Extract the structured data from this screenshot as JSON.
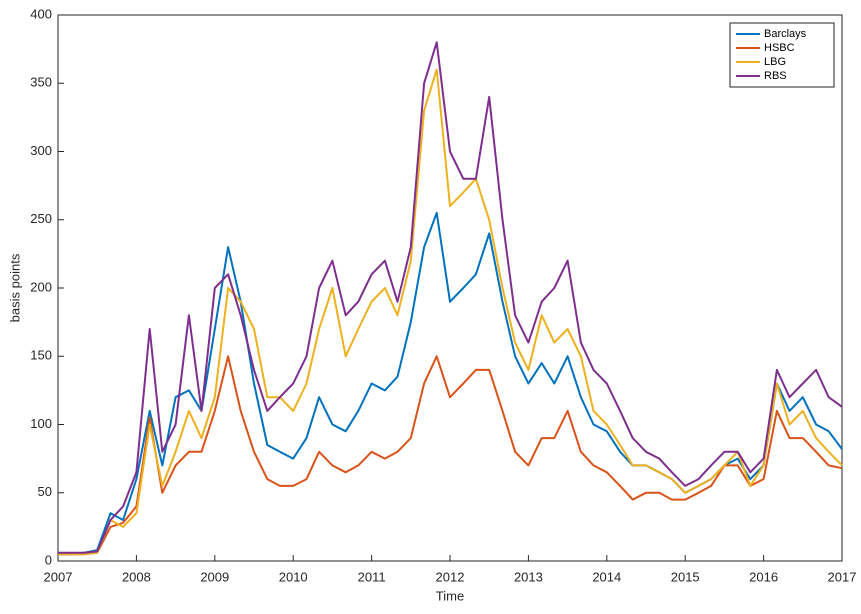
{
  "chart_data": {
    "type": "line",
    "xlabel": "Time",
    "ylabel": "basis points",
    "x": [
      2007.0,
      2007.17,
      2007.33,
      2007.5,
      2007.67,
      2007.83,
      2008.0,
      2008.17,
      2008.33,
      2008.5,
      2008.67,
      2008.83,
      2009.0,
      2009.17,
      2009.33,
      2009.5,
      2009.67,
      2009.83,
      2010.0,
      2010.17,
      2010.33,
      2010.5,
      2010.67,
      2010.83,
      2011.0,
      2011.17,
      2011.33,
      2011.5,
      2011.67,
      2011.83,
      2012.0,
      2012.17,
      2012.33,
      2012.5,
      2012.67,
      2012.83,
      2013.0,
      2013.17,
      2013.33,
      2013.5,
      2013.67,
      2013.83,
      2014.0,
      2014.17,
      2014.33,
      2014.5,
      2014.67,
      2014.83,
      2015.0,
      2015.17,
      2015.33,
      2015.5,
      2015.67,
      2015.83,
      2016.0,
      2016.17,
      2016.33,
      2016.5,
      2016.67,
      2016.83,
      2017.0
    ],
    "series": [
      {
        "name": "Barclays",
        "color": "#0072bd",
        "values": [
          5,
          5,
          6,
          8,
          35,
          30,
          60,
          110,
          70,
          120,
          125,
          110,
          170,
          230,
          190,
          130,
          85,
          80,
          75,
          90,
          120,
          100,
          95,
          110,
          130,
          125,
          135,
          175,
          230,
          255,
          190,
          200,
          210,
          240,
          190,
          150,
          130,
          145,
          130,
          150,
          120,
          100,
          95,
          80,
          70,
          70,
          65,
          60,
          50,
          55,
          60,
          70,
          75,
          60,
          70,
          130,
          110,
          120,
          100,
          95,
          82
        ]
      },
      {
        "name": "HSBC",
        "color": "#d95319",
        "values": [
          5,
          5,
          5,
          6,
          25,
          28,
          40,
          105,
          50,
          70,
          80,
          80,
          110,
          150,
          110,
          80,
          60,
          55,
          55,
          60,
          80,
          70,
          65,
          70,
          80,
          75,
          80,
          90,
          130,
          150,
          120,
          130,
          140,
          140,
          110,
          80,
          70,
          90,
          90,
          110,
          80,
          70,
          65,
          55,
          45,
          50,
          50,
          45,
          45,
          50,
          55,
          70,
          70,
          55,
          60,
          110,
          90,
          90,
          80,
          70,
          68
        ]
      },
      {
        "name": "LBG",
        "color": "#edb120",
        "values": [
          5,
          5,
          5,
          6,
          30,
          25,
          35,
          100,
          55,
          80,
          110,
          90,
          120,
          200,
          190,
          170,
          120,
          120,
          110,
          130,
          170,
          200,
          150,
          170,
          190,
          200,
          180,
          220,
          330,
          360,
          260,
          270,
          280,
          250,
          200,
          160,
          140,
          180,
          160,
          170,
          150,
          110,
          100,
          85,
          70,
          70,
          65,
          60,
          50,
          55,
          60,
          70,
          80,
          55,
          70,
          130,
          100,
          110,
          90,
          80,
          70
        ]
      },
      {
        "name": "RBS",
        "color": "#7e2f8e",
        "values": [
          6,
          6,
          6,
          7,
          30,
          40,
          65,
          170,
          80,
          100,
          180,
          110,
          200,
          210,
          180,
          140,
          110,
          120,
          130,
          150,
          200,
          220,
          180,
          190,
          210,
          220,
          190,
          230,
          350,
          380,
          300,
          280,
          280,
          340,
          250,
          180,
          160,
          190,
          200,
          220,
          160,
          140,
          130,
          110,
          90,
          80,
          75,
          65,
          55,
          60,
          70,
          80,
          80,
          65,
          75,
          140,
          120,
          130,
          140,
          120,
          113
        ]
      }
    ],
    "xlim": [
      2007,
      2017
    ],
    "xticks": [
      2007,
      2008,
      2009,
      2010,
      2011,
      2012,
      2013,
      2014,
      2015,
      2016,
      2017
    ],
    "ylim": [
      0,
      400
    ],
    "yticks": [
      0,
      50,
      100,
      150,
      200,
      250,
      300,
      350,
      400
    ],
    "legend": "top-right"
  }
}
